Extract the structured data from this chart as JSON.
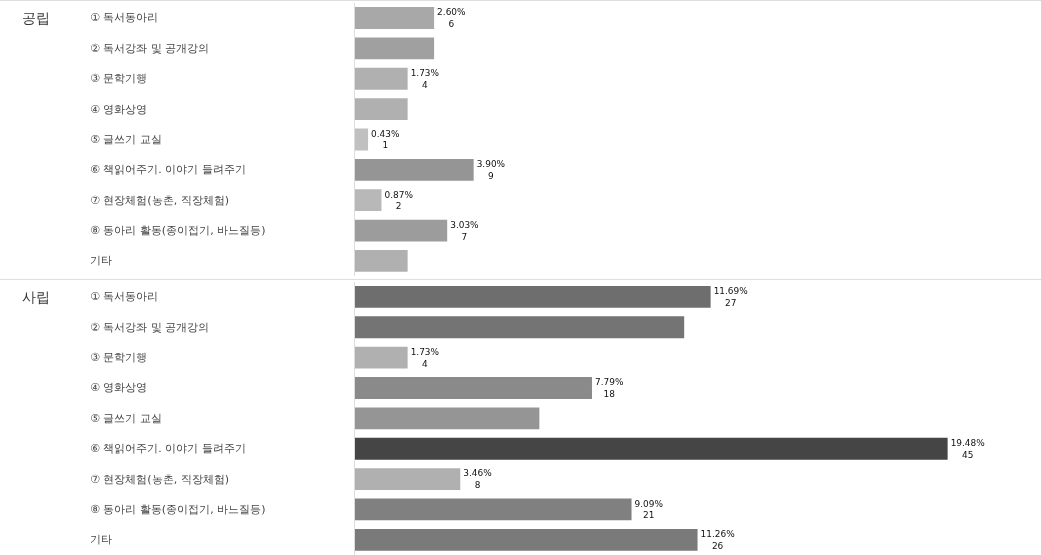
{
  "chart_data": [
    {
      "type": "bar",
      "orientation": "horizontal",
      "ylabel": "공립",
      "categories": [
        "① 독서동아리",
        "② 독서강좌 및 공개강의",
        "③ 문학기행",
        "④ 영화상영",
        "⑤ 글쓰기 교실",
        "⑥ 책읽어주기. 이야기 들려주기",
        "⑦ 현장체험(농촌, 직장체험)",
        "⑧ 동아리 활동(종이접기, 바느질등)",
        "기타"
      ],
      "values": [
        2.6,
        2.6,
        1.73,
        1.73,
        0.43,
        3.9,
        0.87,
        3.03,
        1.73
      ],
      "colors": [
        "#a8a8a8",
        "#a0a0a0",
        "#b0b0b0",
        "#b0b0b0",
        "#c0c0c0",
        "#959595",
        "#b8b8b8",
        "#9c9c9c",
        "#b0b0b0"
      ],
      "value_labels": [
        "2.60%\n6",
        null,
        "1.73%\n4",
        null,
        "0.43%\n1",
        "3.90%\n9",
        "0.87%\n2",
        "3.03%\n7",
        null
      ]
    },
    {
      "type": "bar",
      "orientation": "horizontal",
      "ylabel": "사립",
      "categories": [
        "① 독서동아리",
        "② 독서강좌 및 공개강의",
        "③ 문학기행",
        "④ 영화상영",
        "⑤ 글쓰기 교실",
        "⑥ 책읽어주기. 이야기 들려주기",
        "⑦ 현장체험(농촌, 직장체험)",
        "⑧ 동아리 활동(종이접기, 바느질등)",
        "기타"
      ],
      "values": [
        11.69,
        10.82,
        1.73,
        7.79,
        6.06,
        19.48,
        3.46,
        9.09,
        11.26
      ],
      "colors": [
        "#6e6e6e",
        "#747474",
        "#b0b0b0",
        "#8a8a8a",
        "#959595",
        "#454545",
        "#b0b0b0",
        "#808080",
        "#7a7a7a"
      ],
      "value_labels": [
        "11.69%\n27",
        null,
        "1.73%\n4",
        "7.79%\n18",
        null,
        "19.48%\n45",
        "3.46%\n8",
        "9.09%\n21",
        "11.26%\n26"
      ]
    }
  ]
}
